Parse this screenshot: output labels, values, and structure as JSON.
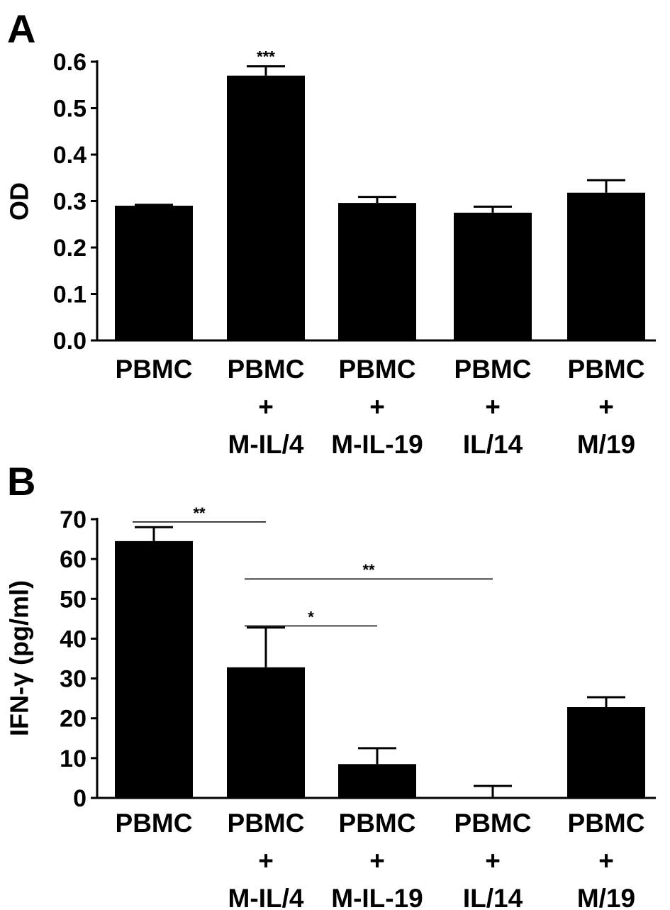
{
  "charts": [
    {
      "panel": "A",
      "chart_data": {
        "type": "bar",
        "ylabel": "OD",
        "xlabel": "",
        "ylim": [
          0.0,
          0.6
        ],
        "yticks": [
          "0.0",
          "0.1",
          "0.2",
          "0.3",
          "0.4",
          "0.5",
          "0.6"
        ],
        "categories": [
          [
            "PBMC"
          ],
          [
            "PBMC",
            "+",
            "M-IL/4"
          ],
          [
            "PBMC",
            "+",
            "M-IL-19"
          ],
          [
            "PBMC",
            "+",
            "IL/14"
          ],
          [
            "PBMC",
            "+",
            "M/19"
          ]
        ],
        "values": [
          0.29,
          0.57,
          0.296,
          0.275,
          0.318
        ],
        "errors": [
          0.002,
          0.02,
          0.013,
          0.013,
          0.027
        ],
        "significance": [
          {
            "type": "above_bar",
            "index": 1,
            "label": "***"
          }
        ],
        "grid": false,
        "legend": "none"
      }
    },
    {
      "panel": "B",
      "chart_data": {
        "type": "bar",
        "ylabel": "IFN-γ (pg/ml)",
        "xlabel": "",
        "ylim": [
          0,
          70
        ],
        "yticks": [
          "0",
          "10",
          "20",
          "30",
          "40",
          "50",
          "60",
          "70"
        ],
        "categories": [
          [
            "PBMC"
          ],
          [
            "PBMC",
            "+",
            "M-IL/4"
          ],
          [
            "PBMC",
            "+",
            "M-IL-19"
          ],
          [
            "PBMC",
            "+",
            "IL/14"
          ],
          [
            "PBMC",
            "+",
            "M/19"
          ]
        ],
        "values": [
          64.5,
          32.8,
          8.5,
          0,
          22.8
        ],
        "errors": [
          3.5,
          10,
          4,
          3,
          2.5
        ],
        "significance": [
          {
            "type": "bracket",
            "from": 0,
            "to": 1,
            "y": 69.3,
            "label": "**"
          },
          {
            "type": "bracket",
            "from": 1,
            "to": 3,
            "y": 55,
            "label": "**"
          },
          {
            "type": "bracket",
            "from": 1,
            "to": 2,
            "y": 43.2,
            "label": "*"
          }
        ],
        "grid": false,
        "legend": "none"
      }
    }
  ]
}
